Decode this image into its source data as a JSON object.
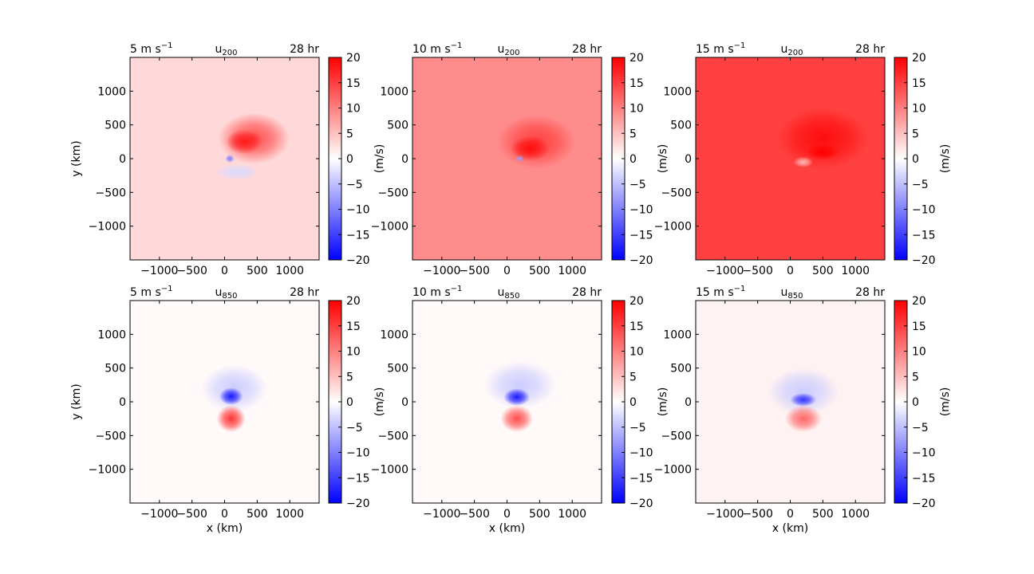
{
  "figure": {
    "colorbar": {
      "ticks": [
        20,
        15,
        10,
        5,
        0,
        -5,
        -10,
        -15,
        -20
      ],
      "range": [
        -20,
        20
      ],
      "label": "(m/s)",
      "colormap": "bwr",
      "neg_color": "#0000ff",
      "zero_color": "#ffffff",
      "pos_color": "#ff0000"
    }
  },
  "chart_data": [
    {
      "type": "heatmap",
      "title_left": "5 m s",
      "title_left_exp": "−1",
      "title_center": "u",
      "title_sub": "200",
      "title_right": "28 hr",
      "xlabel": "",
      "ylabel": "y (km)",
      "xlim": [
        -1450,
        1450
      ],
      "ylim": [
        -1500,
        1500
      ],
      "xticks": [
        -1000,
        -500,
        0,
        500,
        1000
      ],
      "yticks": [
        1000,
        500,
        0,
        -500,
        -1000
      ],
      "background_value": 3,
      "features": [
        {
          "x": 450,
          "y": 300,
          "value": 14,
          "rx": 550,
          "ry": 380
        },
        {
          "x": 300,
          "y": 250,
          "value": 18,
          "rx": 280,
          "ry": 180
        },
        {
          "x": 80,
          "y": 0,
          "value": -10,
          "rx": 70,
          "ry": 60
        },
        {
          "x": 200,
          "y": -200,
          "value": -3,
          "rx": 350,
          "ry": 120
        }
      ]
    },
    {
      "type": "heatmap",
      "title_left": "10 m s",
      "title_left_exp": "−1",
      "title_center": "u",
      "title_sub": "200",
      "title_right": "28 hr",
      "xlabel": "",
      "ylabel": "",
      "xlim": [
        -1450,
        1450
      ],
      "ylim": [
        -1500,
        1500
      ],
      "xticks": [
        -1000,
        -500,
        0,
        500,
        1000
      ],
      "yticks": [
        1000,
        500,
        0,
        -500,
        -1000
      ],
      "background_value": 9,
      "features": [
        {
          "x": 450,
          "y": 250,
          "value": 15,
          "rx": 600,
          "ry": 400
        },
        {
          "x": 350,
          "y": 150,
          "value": 19,
          "rx": 300,
          "ry": 180
        },
        {
          "x": 200,
          "y": 0,
          "value": -8,
          "rx": 60,
          "ry": 50
        }
      ]
    },
    {
      "type": "heatmap",
      "title_left": "15 m s",
      "title_left_exp": "−1",
      "title_center": "u",
      "title_sub": "200",
      "title_right": "28 hr",
      "xlabel": "",
      "ylabel": "",
      "xlim": [
        -1450,
        1450
      ],
      "ylim": [
        -1500,
        1500
      ],
      "xticks": [
        -1000,
        -500,
        0,
        500,
        1000
      ],
      "yticks": [
        1000,
        500,
        0,
        -500,
        -1000
      ],
      "background_value": 15,
      "features": [
        {
          "x": 500,
          "y": 300,
          "value": 19,
          "rx": 700,
          "ry": 450
        },
        {
          "x": 500,
          "y": 100,
          "value": 20,
          "rx": 250,
          "ry": 120
        },
        {
          "x": 200,
          "y": -50,
          "value": 6,
          "rx": 150,
          "ry": 80
        }
      ]
    },
    {
      "type": "heatmap",
      "title_left": "5 m s",
      "title_left_exp": "−1",
      "title_center": "u",
      "title_sub": "850",
      "title_right": "28 hr",
      "xlabel": "x (km)",
      "ylabel": "y (km)",
      "xlim": [
        -1450,
        1450
      ],
      "ylim": [
        -1500,
        1500
      ],
      "xticks": [
        -1000,
        -500,
        0,
        500,
        1000
      ],
      "yticks": [
        1000,
        500,
        0,
        -500,
        -1000
      ],
      "background_value": 0.5,
      "features": [
        {
          "x": 150,
          "y": 200,
          "value": -4,
          "rx": 500,
          "ry": 350
        },
        {
          "x": 100,
          "y": 80,
          "value": -18,
          "rx": 180,
          "ry": 130
        },
        {
          "x": 100,
          "y": -250,
          "value": 16,
          "rx": 220,
          "ry": 200
        }
      ]
    },
    {
      "type": "heatmap",
      "title_left": "10 m s",
      "title_left_exp": "−1",
      "title_center": "u",
      "title_sub": "850",
      "title_right": "28 hr",
      "xlabel": "x (km)",
      "ylabel": "",
      "xlim": [
        -1450,
        1450
      ],
      "ylim": [
        -1500,
        1500
      ],
      "xticks": [
        -1000,
        -500,
        0,
        500,
        1000
      ],
      "yticks": [
        1000,
        500,
        0,
        -500,
        -1000
      ],
      "background_value": 0.5,
      "features": [
        {
          "x": 200,
          "y": 250,
          "value": -4,
          "rx": 550,
          "ry": 350
        },
        {
          "x": 150,
          "y": 70,
          "value": -18,
          "rx": 200,
          "ry": 130
        },
        {
          "x": 150,
          "y": -250,
          "value": 14,
          "rx": 250,
          "ry": 200
        }
      ]
    },
    {
      "type": "heatmap",
      "title_left": "15 m s",
      "title_left_exp": "−1",
      "title_center": "u",
      "title_sub": "850",
      "title_right": "28 hr",
      "xlabel": "x (km)",
      "ylabel": "",
      "xlim": [
        -1450,
        1450
      ],
      "ylim": [
        -1500,
        1500
      ],
      "xticks": [
        -1000,
        -500,
        0,
        500,
        1000
      ],
      "yticks": [
        1000,
        500,
        0,
        -500,
        -1000
      ],
      "background_value": 1,
      "features": [
        {
          "x": 200,
          "y": 150,
          "value": -4,
          "rx": 550,
          "ry": 350
        },
        {
          "x": 200,
          "y": 30,
          "value": -16,
          "rx": 200,
          "ry": 100
        },
        {
          "x": 200,
          "y": -250,
          "value": 12,
          "rx": 280,
          "ry": 200
        }
      ]
    }
  ]
}
